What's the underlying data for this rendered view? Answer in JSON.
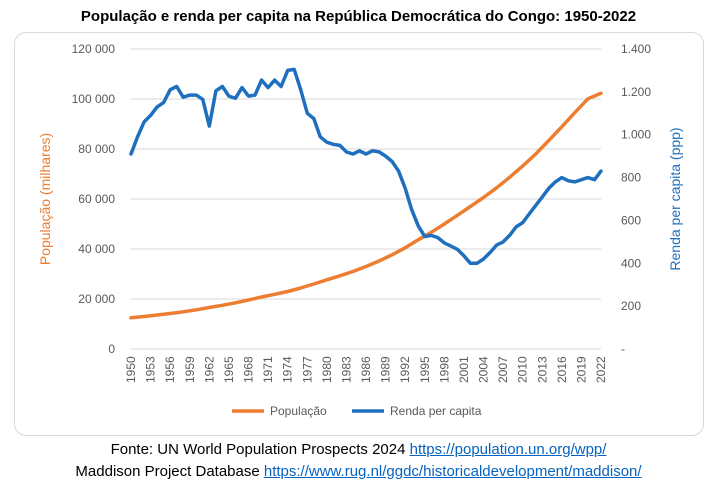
{
  "chart_data": {
    "type": "line",
    "title": "População e renda per capita na República Democrática do Congo: 1950-2022",
    "xlabel": "",
    "ylabel": "População (milhares)",
    "y2label": "Renda per capita (ppp)",
    "x_range": [
      1950,
      2022
    ],
    "x_tick_labels": [
      "1950",
      "1953",
      "1956",
      "1959",
      "1962",
      "1965",
      "1968",
      "1971",
      "1974",
      "1977",
      "1980",
      "1983",
      "1986",
      "1989",
      "1992",
      "1995",
      "1998",
      "2001",
      "2004",
      "2007",
      "2010",
      "2013",
      "2016",
      "2019",
      "2022"
    ],
    "y_range": [
      0,
      120000
    ],
    "y_tick_labels": [
      "0",
      "20 000",
      "40 000",
      "60 000",
      "80 000",
      "100 000",
      "120 000"
    ],
    "y2_range": [
      0,
      1400
    ],
    "y2_tick_labels": [
      "-",
      "200",
      "400",
      "600",
      "800",
      "1.000",
      "1.200",
      "1.400"
    ],
    "grid": true,
    "legend_position": "bottom",
    "colors": {
      "population": "#ed7d31",
      "income": "#1f6fbf",
      "grid": "#d9d9d9",
      "axis_text": "#595959"
    },
    "series": [
      {
        "name": "População",
        "axis": "left",
        "x": [
          1950,
          1952,
          1954,
          1956,
          1958,
          1960,
          1962,
          1964,
          1966,
          1968,
          1970,
          1972,
          1974,
          1976,
          1978,
          1980,
          1982,
          1984,
          1986,
          1988,
          1990,
          1992,
          1994,
          1996,
          1998,
          2000,
          2002,
          2004,
          2006,
          2008,
          2010,
          2012,
          2014,
          2016,
          2018,
          2020,
          2022
        ],
        "values": [
          12500,
          13000,
          13600,
          14200,
          14900,
          15700,
          16600,
          17500,
          18500,
          19600,
          20800,
          21900,
          23000,
          24400,
          26000,
          27700,
          29300,
          31000,
          33000,
          35200,
          37700,
          40500,
          43700,
          46700,
          50000,
          53500,
          57000,
          60600,
          64500,
          68700,
          73200,
          78000,
          83400,
          88900,
          94600,
          100100,
          102300
        ]
      },
      {
        "name": "Renda per capita",
        "axis": "right",
        "x": [
          1950,
          1951,
          1952,
          1953,
          1954,
          1955,
          1956,
          1957,
          1958,
          1959,
          1960,
          1961,
          1962,
          1963,
          1964,
          1965,
          1966,
          1967,
          1968,
          1969,
          1970,
          1971,
          1972,
          1973,
          1974,
          1975,
          1976,
          1977,
          1978,
          1979,
          1980,
          1981,
          1982,
          1983,
          1984,
          1985,
          1986,
          1987,
          1988,
          1989,
          1990,
          1991,
          1992,
          1993,
          1994,
          1995,
          1996,
          1997,
          1998,
          1999,
          2000,
          2001,
          2002,
          2003,
          2004,
          2005,
          2006,
          2007,
          2008,
          2009,
          2010,
          2011,
          2012,
          2013,
          2014,
          2015,
          2016,
          2017,
          2018,
          2019,
          2020,
          2021,
          2022
        ],
        "values": [
          910,
          990,
          1060,
          1090,
          1130,
          1150,
          1210,
          1225,
          1175,
          1185,
          1185,
          1165,
          1040,
          1205,
          1225,
          1180,
          1170,
          1220,
          1180,
          1185,
          1255,
          1220,
          1255,
          1225,
          1300,
          1305,
          1210,
          1100,
          1075,
          990,
          965,
          955,
          950,
          920,
          910,
          925,
          910,
          925,
          920,
          900,
          875,
          830,
          750,
          650,
          575,
          525,
          530,
          520,
          495,
          480,
          465,
          435,
          400,
          400,
          420,
          450,
          485,
          500,
          530,
          570,
          590,
          630,
          670,
          710,
          750,
          780,
          800,
          785,
          780,
          790,
          800,
          790,
          830
        ]
      }
    ]
  },
  "footer": {
    "line1_text": "Fonte: UN World Population Prospects 2024 ",
    "line1_link": "https://population.un.org/wpp/",
    "line2_text": "Maddison Project Database ",
    "line2_link": "https://www.rug.nl/ggdc/historicaldevelopment/maddison/"
  }
}
